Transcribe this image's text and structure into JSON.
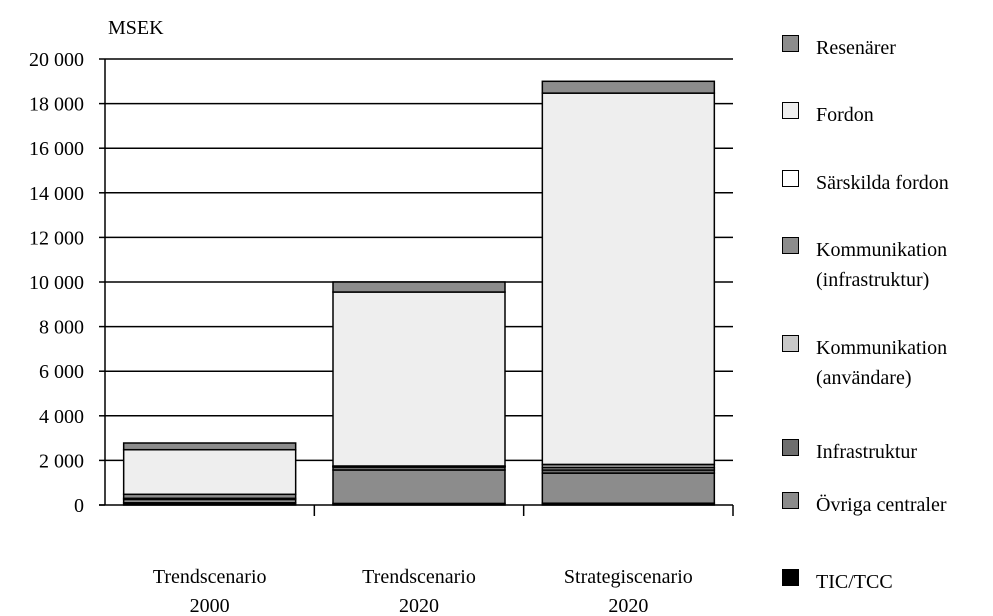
{
  "chart_data": {
    "type": "bar",
    "stacked": true,
    "ylabel": "MSEK",
    "ylim": [
      0,
      20000
    ],
    "yticks": [
      0,
      2000,
      4000,
      6000,
      8000,
      10000,
      12000,
      14000,
      16000,
      18000,
      20000
    ],
    "ytick_labels": [
      "0",
      "2 000",
      "4 000",
      "6 000",
      "8 000",
      "10 000",
      "12 000",
      "14 000",
      "16 000",
      "18 000",
      "20 000"
    ],
    "categories": [
      {
        "line1": "Trendscenario",
        "line2": "2000"
      },
      {
        "line1": "Trendscenario",
        "line2": "2020"
      },
      {
        "line1": "Strategiscenario",
        "line2": "2020"
      }
    ],
    "grid": "horizontal",
    "legend_position": "right",
    "series": [
      {
        "name": "TIC/TCC",
        "color": "#000000",
        "values": [
          100,
          70,
          80
        ]
      },
      {
        "name": "Övriga centraler",
        "color": "#8c8c8c",
        "values": [
          150,
          1500,
          1350
        ]
      },
      {
        "name": "Infrastruktur",
        "color": "#6e6e6e",
        "values": [
          50,
          130,
          140
        ]
      },
      {
        "name": "Kommunikation (användare)",
        "color": "#c8c8c8",
        "values": [
          0,
          30,
          100
        ]
      },
      {
        "name": "Kommunikation (infrastruktur)",
        "color": "#8c8c8c",
        "values": [
          180,
          20,
          150
        ]
      },
      {
        "name": "Särskilda fordon",
        "color": "#ffffff",
        "values": [
          0,
          0,
          0
        ]
      },
      {
        "name": "Fordon",
        "color": "#eeeeee",
        "values": [
          2000,
          7800,
          16650
        ]
      },
      {
        "name": "Resenärer",
        "color": "#8c8c8c",
        "values": [
          300,
          450,
          530
        ]
      }
    ]
  },
  "legend": [
    {
      "line1": "Resenärer",
      "line2": "",
      "color": "#8c8c8c"
    },
    {
      "line1": "Fordon",
      "line2": "",
      "color": "#eeeeee"
    },
    {
      "line1": "Särskilda fordon",
      "line2": "",
      "color": "#ffffff"
    },
    {
      "line1": "Kommunikation",
      "line2": "(infrastruktur)",
      "color": "#8c8c8c"
    },
    {
      "line1": "Kommunikation",
      "line2": "(användare)",
      "color": "#c8c8c8"
    },
    {
      "line1": "Infrastruktur",
      "line2": "",
      "color": "#6e6e6e"
    },
    {
      "line1": "Övriga centraler",
      "line2": "",
      "color": "#8c8c8c"
    },
    {
      "line1": "TIC/TCC",
      "line2": "",
      "color": "#000000"
    }
  ]
}
